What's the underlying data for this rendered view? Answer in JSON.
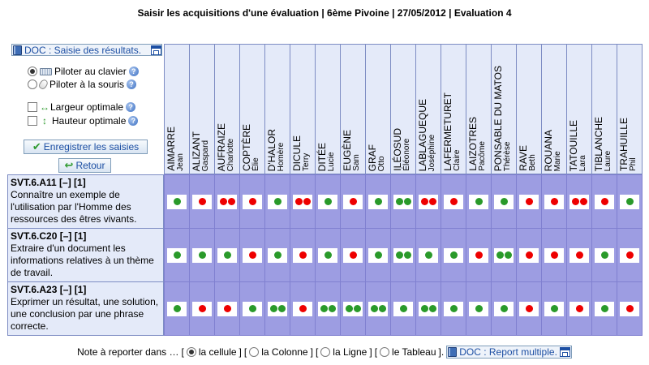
{
  "page": {
    "title": "Saisir les acquisitions d'une évaluation | 6ème Pivoine | 27/05/2012 | Evaluation 4"
  },
  "panel": {
    "doc_link": "DOC : Saisie des résultats.",
    "mode_keyboard": "Piloter au clavier",
    "mode_mouse": "Piloter à la souris",
    "mode_selected": "keyboard",
    "width_label": "Largeur optimale",
    "height_label": "Hauteur optimale",
    "save_button": "Enregistrer les saisies",
    "back_button": "Retour"
  },
  "students": [
    {
      "last": "AIMARRE",
      "first": "Jean"
    },
    {
      "last": "ALIZANT",
      "first": "Gaspard"
    },
    {
      "last": "AUFRAIZE",
      "first": "Charlotte"
    },
    {
      "last": "COPTÈRE",
      "first": "Élie"
    },
    {
      "last": "D'HALOR",
      "first": "Homère"
    },
    {
      "last": "DICULE",
      "first": "Terry"
    },
    {
      "last": "DITÉE",
      "first": "Lucie"
    },
    {
      "last": "EUGÈNE",
      "first": "Sam"
    },
    {
      "last": "GRAF",
      "first": "Otto"
    },
    {
      "last": "ILÉOSUD",
      "first": "Éléonore"
    },
    {
      "last": "LABLAGUEQUE",
      "first": "Joséphine"
    },
    {
      "last": "LAFERMETURET",
      "first": "Claire"
    },
    {
      "last": "LAIZOTRES",
      "first": "Pacôme"
    },
    {
      "last": "PONSABLE DU MATOS",
      "first": "Thérèse"
    },
    {
      "last": "RAVE",
      "first": "Beth"
    },
    {
      "last": "ROUANA",
      "first": "Marie"
    },
    {
      "last": "TATOUILLE",
      "first": "Lara"
    },
    {
      "last": "TIBLANCHE",
      "first": "Laure"
    },
    {
      "last": "TRAHUILLE",
      "first": "Phil"
    }
  ],
  "skills": [
    {
      "code": "SVT.6.A11 [–] [1]",
      "text": "Connaître un exemple de l'utilisation par l'Homme des ressources des êtres vivants.",
      "marks": [
        "G",
        "R",
        "RR",
        "R",
        "G",
        "RR",
        "G",
        "R",
        "G",
        "GG",
        "RR",
        "R",
        "G",
        "G",
        "R",
        "R",
        "RR",
        "R",
        "G"
      ]
    },
    {
      "code": "SVT.6.C20 [–] [1]",
      "text": "Extraire d'un document les informations relatives à un thème de travail.",
      "marks": [
        "G",
        "G",
        "G",
        "R",
        "G",
        "R",
        "G",
        "R",
        "G",
        "GG",
        "G",
        "G",
        "R",
        "GG",
        "R",
        "R",
        "R",
        "G",
        "R"
      ]
    },
    {
      "code": "SVT.6.A23 [–] [1]",
      "text": "Exprimer un résultat, une solution, une conclusion par une phrase correcte.",
      "marks": [
        "G",
        "R",
        "R",
        "G",
        "GG",
        "R",
        "GG",
        "GG",
        "GG",
        "G",
        "GG",
        "G",
        "G",
        "G",
        "R",
        "G",
        "R",
        "G",
        "R"
      ]
    }
  ],
  "footer": {
    "prefix": "Note à reporter dans …",
    "opt_cell": "la cellule",
    "opt_column": "la Colonne",
    "opt_row": "la Ligne",
    "opt_table": "le Tableau",
    "selected": "cell",
    "doc_link": "DOC : Report multiple."
  }
}
